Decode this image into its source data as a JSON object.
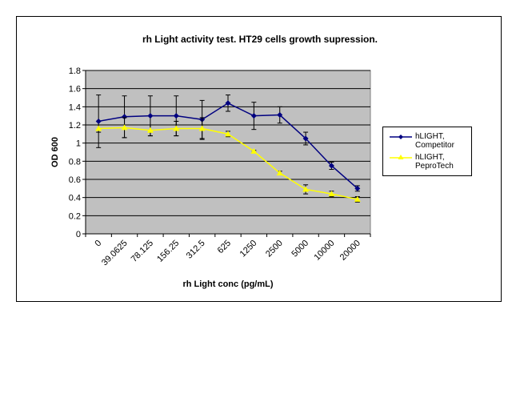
{
  "chart_data": {
    "type": "line",
    "title": "rh Light activity test. HT29 cells growth supression.",
    "xlabel": "rh Light conc (pg/mL)",
    "ylabel": "OD 600",
    "ylim": [
      0,
      1.8
    ],
    "yticks": [
      "0",
      "0.2",
      "0.4",
      "0.6",
      "0.8",
      "1",
      "1.2",
      "1.4",
      "1.6",
      "1.8"
    ],
    "categories": [
      "0",
      "39.0625",
      "78.125",
      "156.25",
      "312.5",
      "625",
      "1250",
      "2500",
      "5000",
      "10000",
      "20000"
    ],
    "grid": true,
    "legend": "right",
    "plot_background": "#c0c0c0",
    "series": [
      {
        "name": "hLIGHT, Competitor",
        "color": "#000080",
        "marker": "diamond",
        "values": [
          1.24,
          1.29,
          1.3,
          1.3,
          1.26,
          1.44,
          1.3,
          1.31,
          1.05,
          0.75,
          0.5
        ],
        "errors": [
          0.29,
          0.23,
          0.22,
          0.22,
          0.21,
          0.09,
          0.15,
          0.09,
          0.07,
          0.04,
          0.03
        ]
      },
      {
        "name": "hLIGHT, PeproTech",
        "color": "#ffff00",
        "marker": "triangle",
        "values": [
          1.16,
          1.17,
          1.14,
          1.16,
          1.16,
          1.1,
          0.91,
          0.67,
          0.49,
          0.44,
          0.38
        ],
        "errors": [
          0.04,
          0.11,
          0.06,
          0.08,
          0.12,
          0.03,
          0.01,
          0.02,
          0.05,
          0.03,
          0.03
        ]
      }
    ]
  }
}
